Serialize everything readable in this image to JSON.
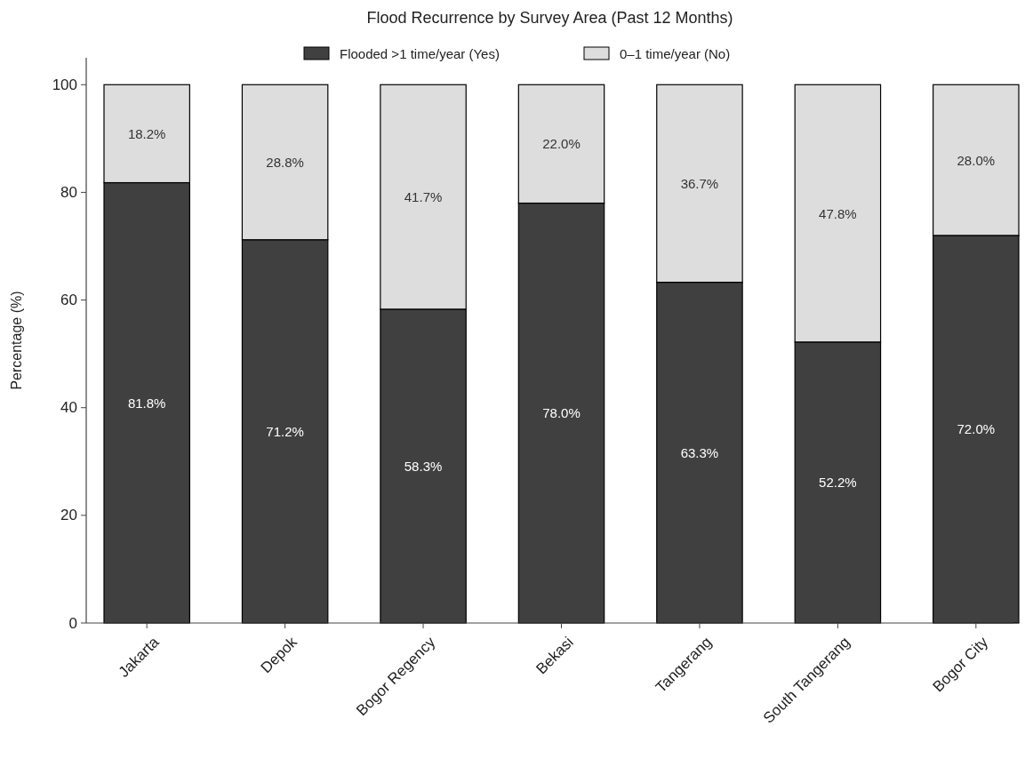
{
  "chart_data": {
    "type": "bar",
    "title": "Flood Recurrence by Survey Area (Past 12 Months)",
    "ylabel": "Percentage (%)",
    "categories": [
      "Jakarta",
      "Depok",
      "Bogor Regency",
      "Bekasi",
      "Tangerang",
      "South Tangerang",
      "Bogor City"
    ],
    "stacked": true,
    "legend": "top",
    "grid": false,
    "ylim": [
      0,
      105
    ],
    "yticks": [
      0,
      20,
      40,
      60,
      80,
      100
    ],
    "series": [
      {
        "name": "Flooded >1 time/year (Yes)",
        "color": "#404040",
        "values": [
          81.8,
          71.2,
          58.3,
          78.0,
          63.3,
          52.2,
          72.0
        ],
        "value_labels": [
          "81.8%",
          "71.2%",
          "58.3%",
          "78.0%",
          "63.3%",
          "52.2%",
          "72.0%"
        ]
      },
      {
        "name": "0–1 time/year (No)",
        "color": "#dddddd",
        "values": [
          18.2,
          28.8,
          41.7,
          22.0,
          36.7,
          47.8,
          28.0
        ],
        "value_labels": [
          "18.2%",
          "28.8%",
          "41.7%",
          "22.0%",
          "36.7%",
          "47.8%",
          "28.0%"
        ]
      }
    ]
  }
}
